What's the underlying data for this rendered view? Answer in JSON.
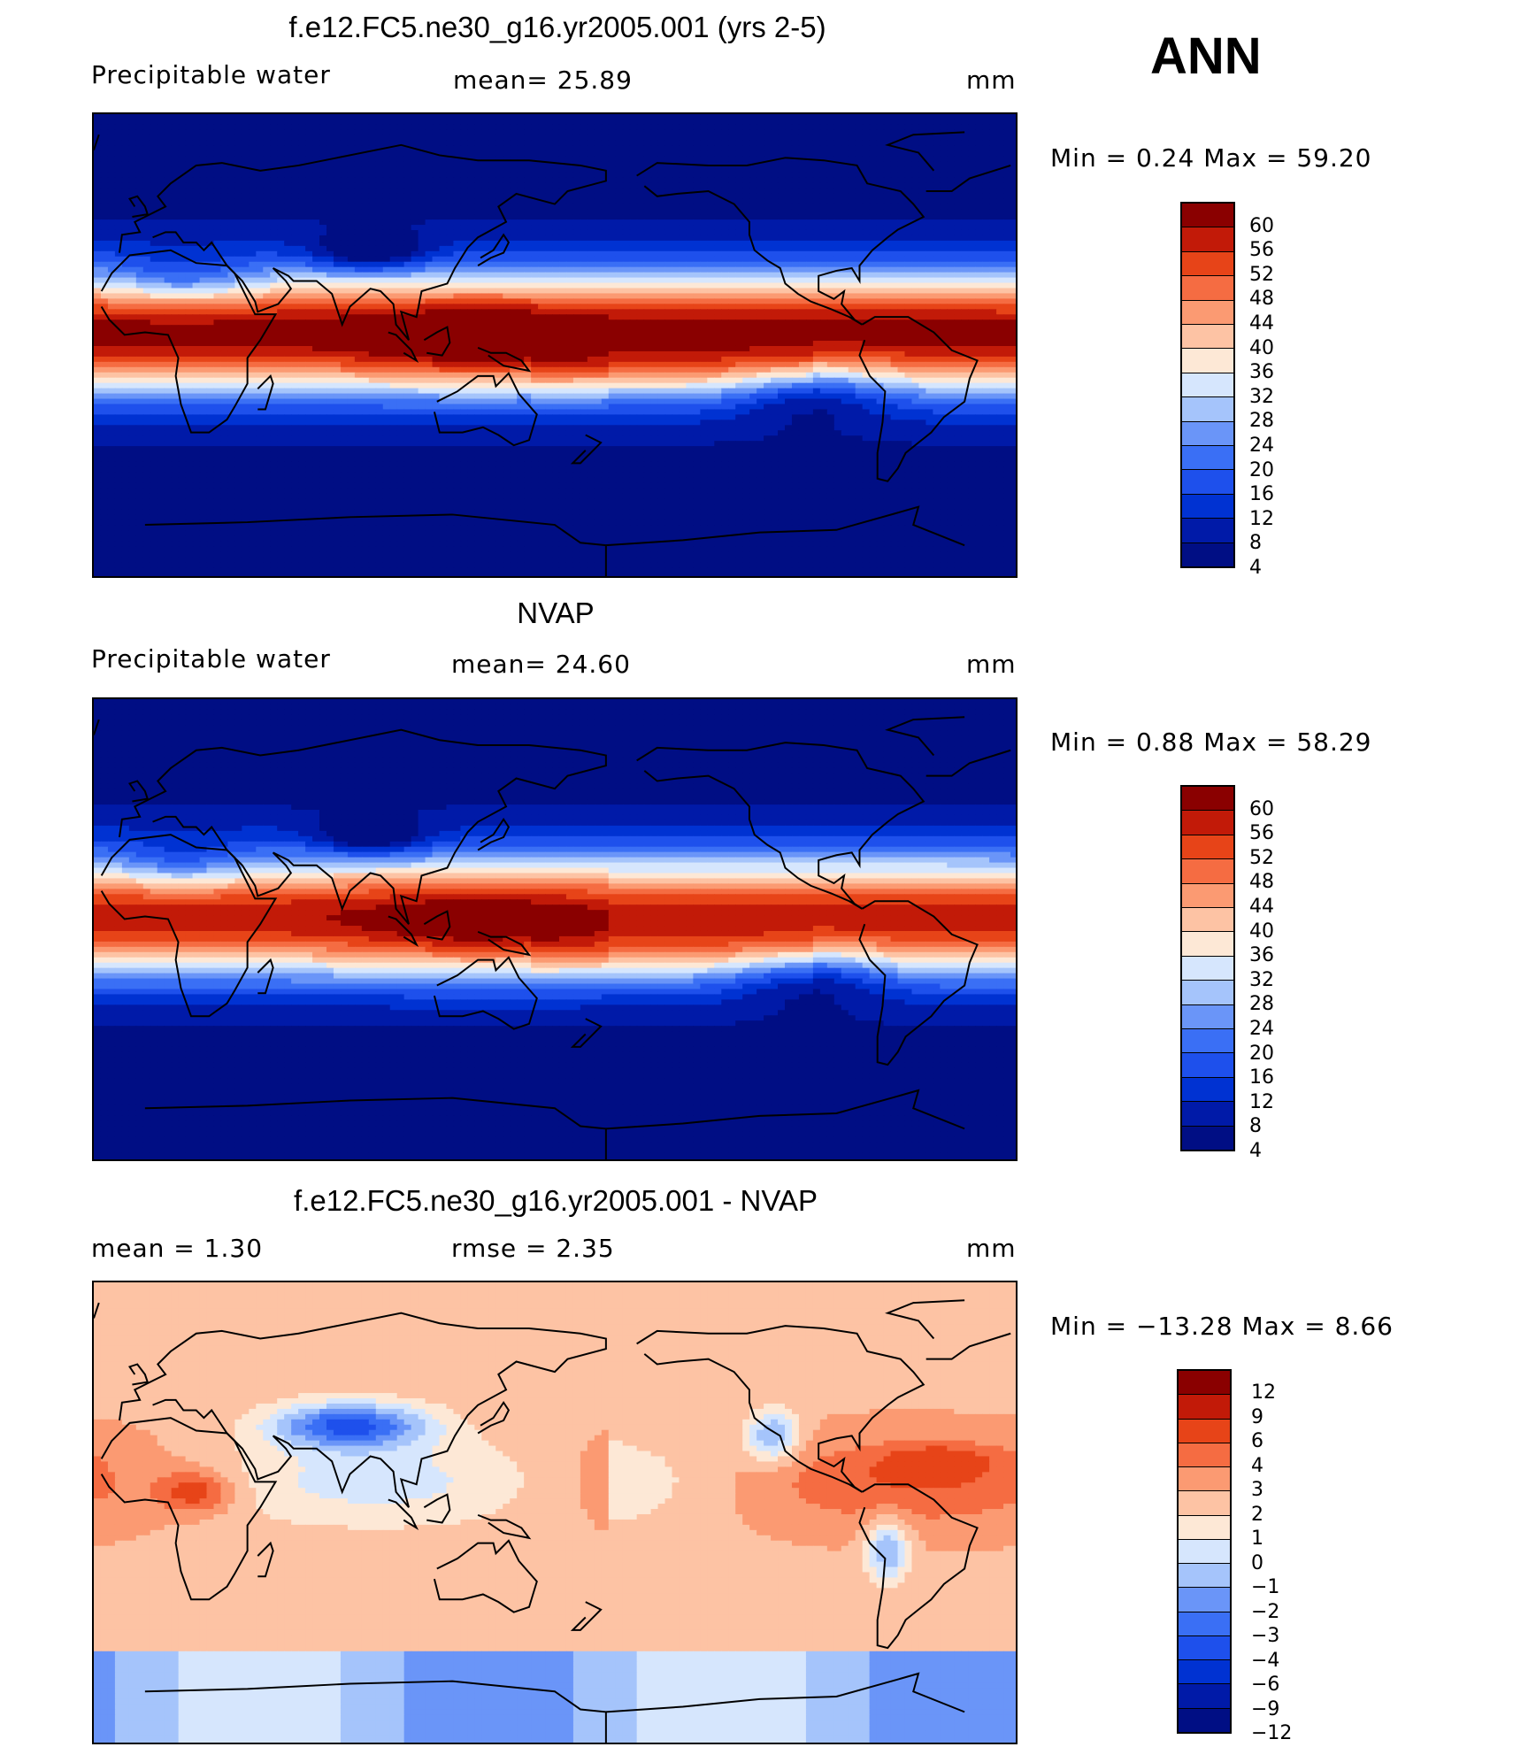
{
  "season": "ANN",
  "colors": {
    "pw": [
      "#000e84",
      "#001aa8",
      "#0032d2",
      "#1e50ec",
      "#3a6ff5",
      "#6a95f8",
      "#a5c4fb",
      "#d6e6fd",
      "#fde8d6",
      "#fdc3a4",
      "#fb9a72",
      "#f56c42",
      "#e74418",
      "#c21a08",
      "#8a0000"
    ],
    "diff": [
      "#000e84",
      "#001aa8",
      "#0032d2",
      "#1e50ec",
      "#3a6ff5",
      "#6a95f8",
      "#a5c4fb",
      "#d6e6fd",
      "#fde8d6",
      "#fdc3a4",
      "#fb9a72",
      "#f56c42",
      "#e74418",
      "#c21a08",
      "#8a0000"
    ]
  },
  "panels": [
    {
      "title": "f.e12.FC5.ne30_g16.yr2005.001 (yrs 2-5)",
      "left_label": "Precipitable  water",
      "mid_label": "mean=   25.89",
      "right_label": "mm",
      "minmax": "Min  =     0.24  Max  =     59.20",
      "colorbar_levels": [
        "60",
        "56",
        "52",
        "48",
        "44",
        "40",
        "36",
        "32",
        "28",
        "24",
        "20",
        "16",
        "12",
        "8",
        "4"
      ],
      "kind": "pw",
      "field_strength": 1.0
    },
    {
      "title": "NVAP",
      "left_label": "Precipitable  water",
      "mid_label": "mean=   24.60",
      "right_label": "mm",
      "minmax": "Min  =     0.88  Max  =     58.29",
      "colorbar_levels": [
        "60",
        "56",
        "52",
        "48",
        "44",
        "40",
        "36",
        "32",
        "28",
        "24",
        "20",
        "16",
        "12",
        "8",
        "4"
      ],
      "kind": "pw",
      "field_strength": 0.94
    },
    {
      "title": "f.e12.FC5.ne30_g16.yr2005.001 - NVAP",
      "left_label": "mean  =      1.30",
      "mid_label": "rmse  =      2.35",
      "right_label": "mm",
      "minmax": "Min  = −13.28  Max  =       8.66",
      "colorbar_levels": [
        "12",
        "9",
        "6",
        "4",
        "3",
        "2",
        "1",
        "0",
        "−1",
        "−2",
        "−3",
        "−4",
        "−6",
        "−9",
        "−12"
      ],
      "kind": "diff",
      "field_strength": 1.0
    }
  ]
}
